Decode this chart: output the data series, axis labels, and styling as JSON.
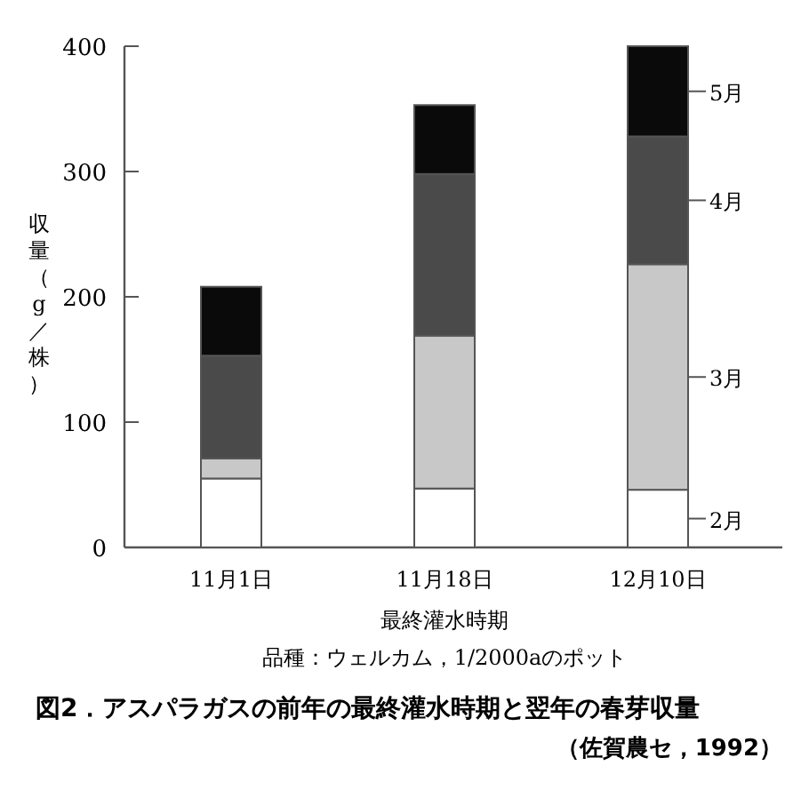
{
  "chart_data": {
    "type": "bar",
    "stacked": true,
    "title": "図2．アスパラガスの前年の最終灌水時期と翌年の春芽収量",
    "xlabel": "最終灌水時期",
    "ylabel": "収量（g／株）",
    "categories": [
      "11月1日",
      "11月18日",
      "12月10日"
    ],
    "series": [
      {
        "name": "2月",
        "color": "#ffffff",
        "values": [
          55,
          47,
          46
        ]
      },
      {
        "name": "3月",
        "color": "#c8c8c8",
        "values": [
          16,
          122,
          180
        ]
      },
      {
        "name": "4月",
        "color": "#4a4a4a",
        "values": [
          82,
          129,
          102
        ]
      },
      {
        "name": "5月",
        "color": "#0a0a0a",
        "values": [
          55,
          55,
          72
        ]
      }
    ],
    "ylim": [
      0,
      400
    ],
    "yticks": [
      0,
      100,
      200,
      300,
      400
    ],
    "legend": "right",
    "annotations": [
      "品種：ウェルカム，1/2000aのポット",
      "（佐賀農セ，1992）"
    ]
  }
}
